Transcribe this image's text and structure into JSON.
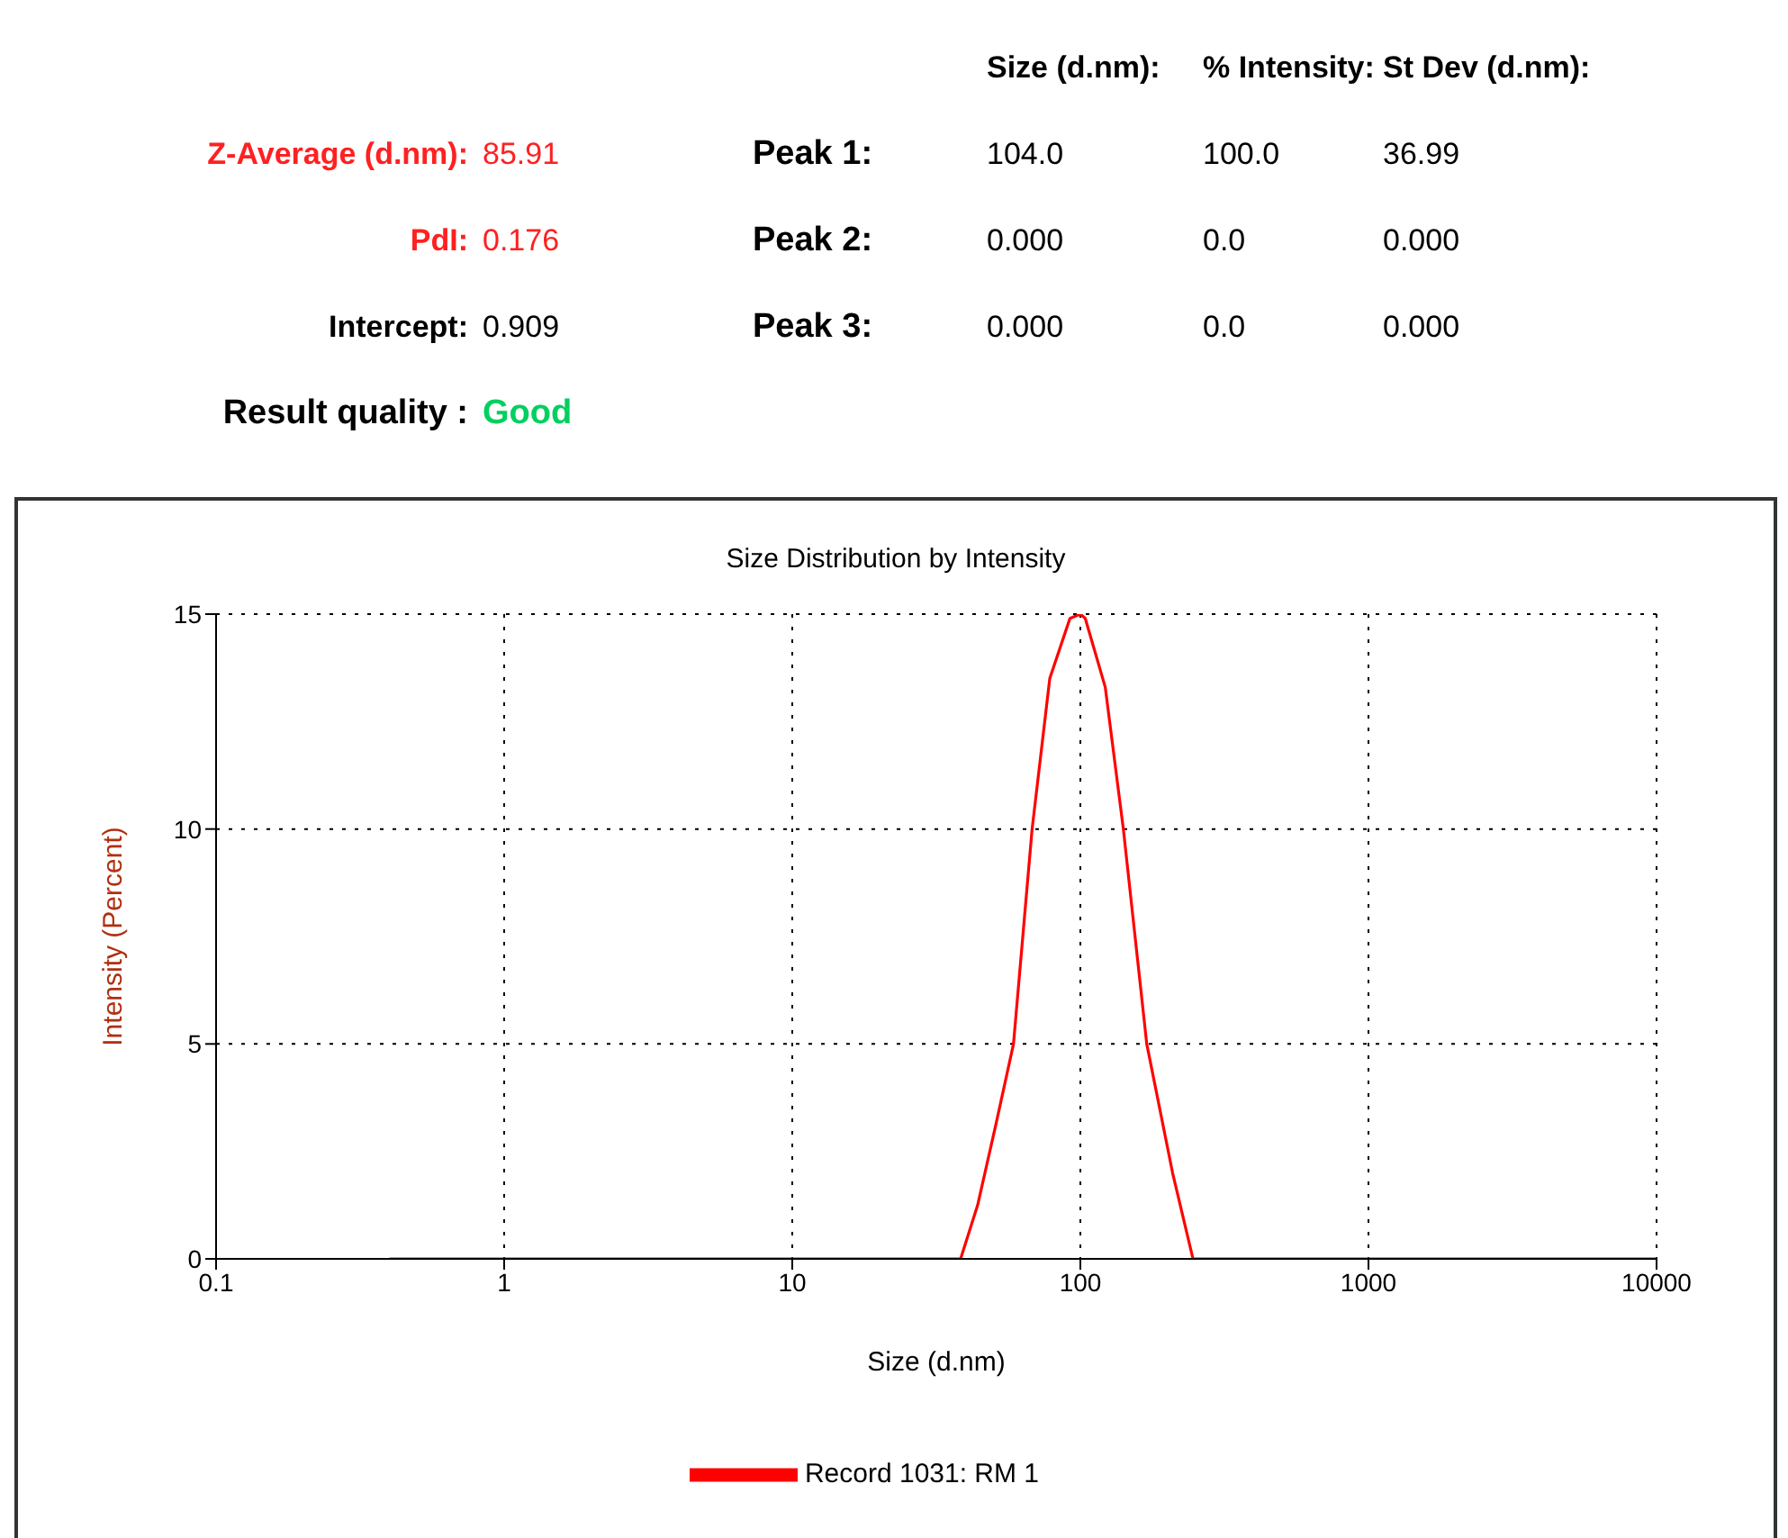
{
  "chart_data": {
    "type": "line",
    "title": "Size Distribution by Intensity",
    "xlabel": "Size (d.nm)",
    "ylabel": "Intensity (Percent)",
    "x": [
      0.4,
      38.4,
      44,
      51,
      58.6,
      68,
      78.3,
      92,
      100,
      104,
      122,
      141,
      170,
      209,
      246,
      10000
    ],
    "series": [
      {
        "name": "Record 1031: RM 1",
        "color": "#ff0000",
        "values": [
          0,
          0,
          1.25,
          3.15,
          5,
          10,
          13.5,
          14.9,
          15,
          14.9,
          13.3,
          10,
          5,
          2,
          0,
          0
        ]
      }
    ],
    "log": "x",
    "xlim": [
      0.1,
      10000
    ],
    "xticks": [
      0.1,
      1,
      10,
      100,
      1000,
      10000
    ],
    "ylim": [
      0,
      15
    ],
    "yticks": [
      0,
      5,
      10,
      15
    ],
    "grid": true,
    "legend": "bottom",
    "marker": "none",
    "line_style": "solid",
    "annotations": [
      "Size (d.nm):",
      "% Intensity:",
      "St Dev (d.nm):",
      "Z-Average (d.nm):",
      "85.91",
      "Peak 1:",
      "104.0",
      "100.0",
      "36.99",
      "PdI:",
      "0.176",
      "Peak 2:",
      "0.000",
      "0.0",
      "0.000",
      "Intercept:",
      "0.909",
      "Peak 3:",
      "0.000",
      "0.0",
      "0.000",
      "Result quality :",
      "Good"
    ]
  }
}
